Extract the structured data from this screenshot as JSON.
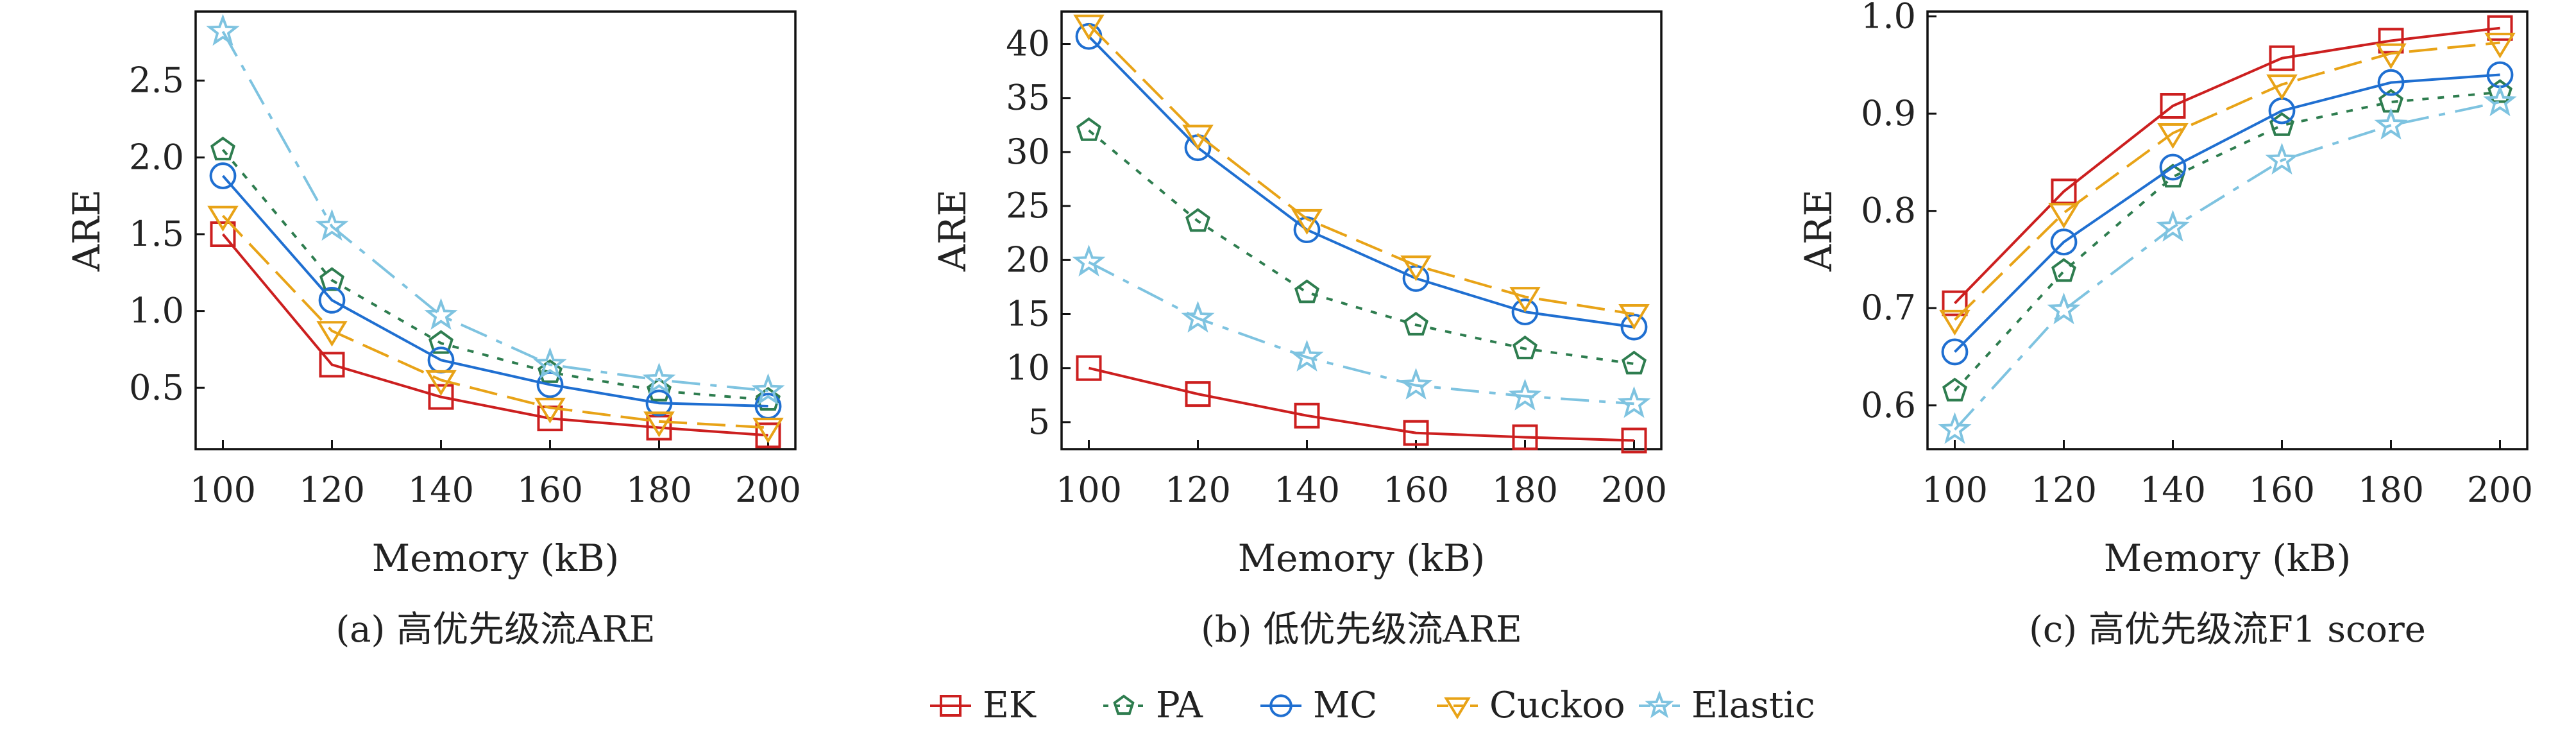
{
  "series_styles": [
    {
      "key": "EK",
      "color": "#cc1f1f",
      "marker": "square",
      "dash": ""
    },
    {
      "key": "PA",
      "color": "#2e7d4f",
      "marker": "pentagon",
      "dash": "10,14"
    },
    {
      "key": "MC",
      "color": "#1f6fd1",
      "marker": "circle",
      "dash": ""
    },
    {
      "key": "Cuckoo",
      "color": "#e8a317",
      "marker": "triangle-down",
      "dash": "44,16"
    },
    {
      "key": "Elastic",
      "color": "#7ec3e0",
      "marker": "star",
      "dash": "44,16,10,16"
    }
  ],
  "legend": {
    "items": [
      "EK",
      "PA",
      "MC",
      "Cuckoo",
      "Elastic"
    ]
  },
  "chart_data": [
    {
      "type": "line",
      "caption": "(a) 高优先级流ARE",
      "xlabel": "Memory (kB)",
      "ylabel": "ARE",
      "x": [
        100,
        120,
        140,
        160,
        180,
        200
      ],
      "xlim": [
        95,
        205
      ],
      "ylim": [
        0.1,
        2.95
      ],
      "yticks": [
        0.5,
        1.0,
        1.5,
        2.0,
        2.5
      ],
      "ytick_labels": [
        "0.5",
        "1.0",
        "1.5",
        "2.0",
        "2.5"
      ],
      "xtick_labels": [
        "100",
        "120",
        "140",
        "160",
        "180",
        "200"
      ],
      "series": [
        {
          "name": "EK",
          "values": [
            1.5,
            0.65,
            0.44,
            0.3,
            0.24,
            0.19
          ]
        },
        {
          "name": "PA",
          "values": [
            2.05,
            1.2,
            0.79,
            0.6,
            0.48,
            0.42
          ]
        },
        {
          "name": "MC",
          "values": [
            1.88,
            1.07,
            0.68,
            0.52,
            0.4,
            0.38
          ]
        },
        {
          "name": "Cuckoo",
          "values": [
            1.62,
            0.87,
            0.55,
            0.37,
            0.28,
            0.24
          ]
        },
        {
          "name": "Elastic",
          "values": [
            2.82,
            1.55,
            0.97,
            0.65,
            0.55,
            0.48
          ]
        }
      ]
    },
    {
      "type": "line",
      "caption": "(b) 低优先级流ARE",
      "xlabel": "Memory (kB)",
      "ylabel": "ARE",
      "x": [
        100,
        120,
        140,
        160,
        180,
        200
      ],
      "xlim": [
        95,
        205
      ],
      "ylim": [
        2.5,
        43
      ],
      "yticks": [
        5,
        10,
        15,
        20,
        25,
        30,
        35,
        40
      ],
      "ytick_labels": [
        "5",
        "10",
        "15",
        "20",
        "25",
        "30",
        "35",
        "40"
      ],
      "xtick_labels": [
        "100",
        "120",
        "140",
        "160",
        "180",
        "200"
      ],
      "series": [
        {
          "name": "EK",
          "values": [
            10.0,
            7.6,
            5.6,
            4.0,
            3.6,
            3.3
          ]
        },
        {
          "name": "PA",
          "values": [
            32.0,
            23.6,
            17.0,
            14.0,
            11.8,
            10.4
          ]
        },
        {
          "name": "MC",
          "values": [
            40.7,
            30.4,
            22.8,
            18.3,
            15.2,
            13.8
          ]
        },
        {
          "name": "Cuckoo",
          "values": [
            41.8,
            31.6,
            23.8,
            19.5,
            16.6,
            15.0
          ]
        },
        {
          "name": "Elastic",
          "values": [
            19.8,
            14.6,
            11.0,
            8.4,
            7.4,
            6.7
          ]
        }
      ]
    },
    {
      "type": "line",
      "caption": "(c) 高优先级流F1 score",
      "xlabel": "Memory (kB)",
      "ylabel": "ARE",
      "x": [
        100,
        120,
        140,
        160,
        180,
        200
      ],
      "xlim": [
        95,
        205
      ],
      "ylim": [
        0.555,
        1.005
      ],
      "yticks": [
        0.6,
        0.7,
        0.8,
        0.9,
        1.0
      ],
      "ytick_labels": [
        "0.6",
        "0.7",
        "0.8",
        "0.9",
        "1.0"
      ],
      "xtick_labels": [
        "100",
        "120",
        "140",
        "160",
        "180",
        "200"
      ],
      "series": [
        {
          "name": "EK",
          "values": [
            0.705,
            0.82,
            0.908,
            0.957,
            0.975,
            0.988
          ]
        },
        {
          "name": "PA",
          "values": [
            0.615,
            0.738,
            0.835,
            0.888,
            0.912,
            0.922
          ]
        },
        {
          "name": "MC",
          "values": [
            0.655,
            0.768,
            0.845,
            0.903,
            0.932,
            0.94
          ]
        },
        {
          "name": "Cuckoo",
          "values": [
            0.688,
            0.798,
            0.88,
            0.93,
            0.962,
            0.973
          ]
        },
        {
          "name": "Elastic",
          "values": [
            0.575,
            0.698,
            0.783,
            0.852,
            0.888,
            0.912
          ]
        }
      ]
    }
  ]
}
